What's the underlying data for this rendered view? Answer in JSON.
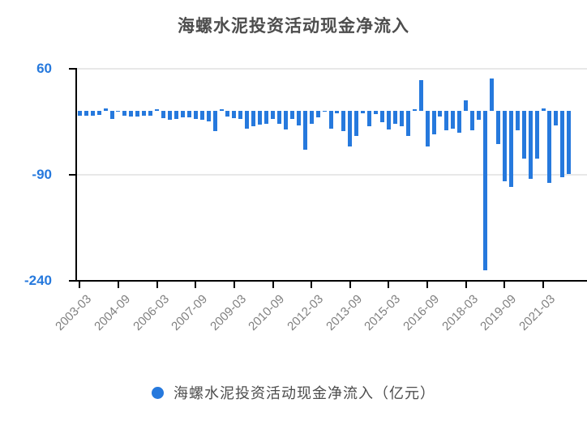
{
  "title": "海螺水泥投资活动现金净流入",
  "legend": {
    "label": "海螺水泥投资活动现金净流入（亿元）"
  },
  "colors": {
    "bar": "#2679dd",
    "axis": "#000000",
    "grid": "#e8e8e8",
    "y_label": "#2679dd",
    "x_label": "#808080",
    "title": "#4d4d4d",
    "legend_text": "#4d4d4d"
  },
  "chart_data": {
    "type": "bar",
    "title": "海螺水泥投资活动现金净流入",
    "series_name": "海螺水泥投资活动现金净流入（亿元）",
    "unit": "亿元",
    "ylim": [
      -240,
      60
    ],
    "y_ticks": [
      60,
      -90,
      -240
    ],
    "x_tick_labels": [
      "2003-03",
      "2004-09",
      "2006-03",
      "2007-09",
      "2009-03",
      "2010-09",
      "2012-03",
      "2013-09",
      "2015-03",
      "2016-09",
      "2018-03",
      "2019-09",
      "2021-03"
    ],
    "grid": "horizontal-only",
    "legend_position": "bottom",
    "categories": [
      "2003-03",
      "2003-06",
      "2003-09",
      "2003-12",
      "2004-03",
      "2004-06",
      "2004-09",
      "2004-12",
      "2005-03",
      "2005-06",
      "2005-09",
      "2005-12",
      "2006-03",
      "2006-06",
      "2006-09",
      "2006-12",
      "2007-03",
      "2007-06",
      "2007-09",
      "2007-12",
      "2008-03",
      "2008-06",
      "2008-09",
      "2008-12",
      "2009-03",
      "2009-06",
      "2009-09",
      "2009-12",
      "2010-03",
      "2010-06",
      "2010-09",
      "2010-12",
      "2011-03",
      "2011-06",
      "2011-09",
      "2011-12",
      "2012-03",
      "2012-06",
      "2012-09",
      "2012-12",
      "2013-03",
      "2013-06",
      "2013-09",
      "2013-12",
      "2014-03",
      "2014-06",
      "2014-09",
      "2014-12",
      "2015-03",
      "2015-06",
      "2015-09",
      "2015-12",
      "2016-03",
      "2016-06",
      "2016-09",
      "2016-12",
      "2017-03",
      "2017-06",
      "2017-09",
      "2017-12",
      "2018-03",
      "2018-06",
      "2018-09",
      "2018-12",
      "2019-03",
      "2019-06",
      "2019-09",
      "2019-12",
      "2020-03",
      "2020-06",
      "2020-09",
      "2020-12",
      "2021-03",
      "2021-06",
      "2021-09",
      "2021-12",
      "2022-03"
    ],
    "values": [
      -7,
      -7,
      -7,
      -6,
      4,
      -12,
      -0.5,
      -7,
      -8,
      -8,
      -7,
      -7,
      2,
      -10,
      -13,
      -11,
      -9,
      -9,
      -11,
      -13,
      -15,
      -29,
      2,
      -8,
      -10,
      -12,
      -25,
      -22,
      -20,
      -18,
      -12,
      -18,
      -26,
      -11,
      -21,
      -55,
      -18,
      -9,
      -1,
      -25,
      -4,
      -29,
      -50,
      -36,
      -3,
      -22,
      -5,
      -16,
      -26,
      -18,
      -22,
      -35,
      2,
      43,
      -50,
      -33,
      -8,
      -28,
      -25,
      -31,
      15,
      -28,
      -13,
      -225,
      46,
      -47,
      -100,
      -108,
      -28,
      -68,
      -96,
      -68,
      4,
      -102,
      -21,
      -94,
      -89
    ]
  }
}
